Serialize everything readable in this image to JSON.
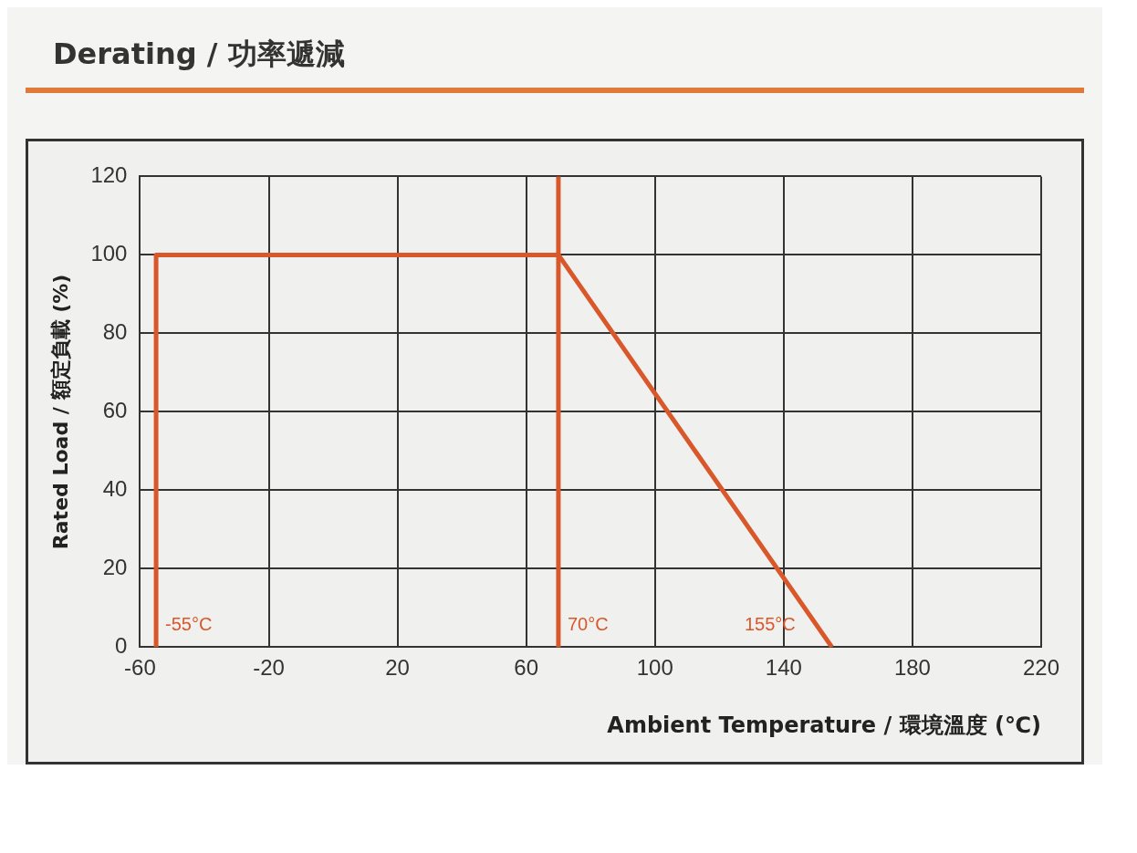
{
  "chart_data": {
    "type": "line",
    "title": "Derating / 功率遞減",
    "xlabel": "Ambient Temperature / 環境溫度 (℃)",
    "ylabel": "Rated Load / 額定負載 (%)",
    "x": [
      -55,
      -55,
      70,
      155
    ],
    "series": [
      {
        "color": "#d9582b",
        "values": [
          0,
          100,
          100,
          0
        ]
      }
    ],
    "xlim": [
      -60,
      220
    ],
    "xticks": [
      -60,
      -20,
      20,
      60,
      100,
      140,
      180,
      220
    ],
    "ylim": [
      0,
      120
    ],
    "yticks": [
      0,
      20,
      40,
      60,
      80,
      100,
      120
    ],
    "grid": true,
    "marker": "none",
    "line_style": "solid",
    "ref_lines": [
      {
        "axis": "x",
        "value": 70,
        "label": "70°C",
        "color": "#d9582b"
      }
    ],
    "annotations": [
      {
        "text": "-55°C",
        "x": -55,
        "y": 0
      },
      {
        "text": "155°C",
        "x": 155,
        "y": 0
      }
    ]
  }
}
